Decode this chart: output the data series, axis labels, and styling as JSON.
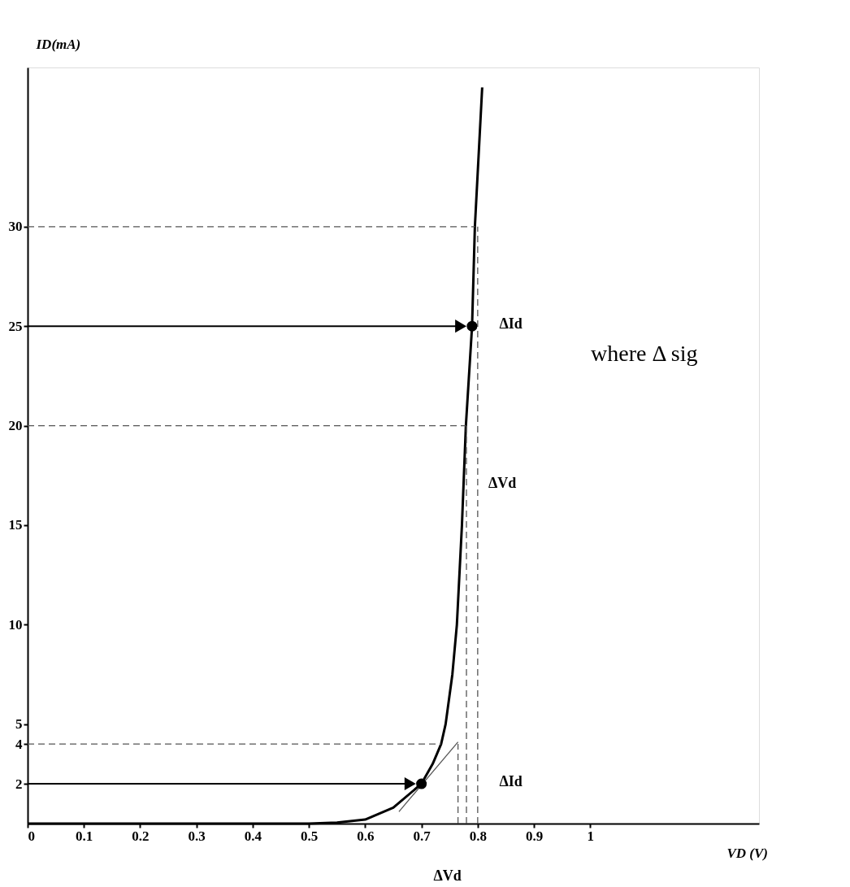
{
  "chart_data": {
    "type": "line",
    "xlabel": "VD (V)",
    "ylabel": "ID(mA)",
    "xlim": [
      0,
      1.3
    ],
    "ylim": [
      0,
      38
    ],
    "xticks": [
      0,
      0.1,
      0.2,
      0.3,
      0.4,
      0.5,
      0.6,
      0.7,
      0.8,
      0.9,
      1
    ],
    "yticks": [
      2,
      4,
      5,
      10,
      15,
      20,
      25,
      30
    ],
    "grid": false,
    "series": [
      {
        "color": "#000000",
        "line_style": "solid",
        "x": [
          0,
          0.5,
          0.55,
          0.6,
          0.65,
          0.7,
          0.72,
          0.735,
          0.743,
          0.755,
          0.763,
          0.772,
          0.779,
          0.79,
          0.795,
          0.808
        ],
        "values": [
          0,
          0,
          0.05,
          0.2,
          0.8,
          2,
          3,
          4,
          5,
          7.5,
          10,
          15,
          20,
          25,
          30,
          37
        ]
      },
      {
        "type": "line",
        "color": "#555555",
        "line_style": "dashed",
        "x": [
          0,
          0.795
        ],
        "values": [
          30,
          30
        ]
      },
      {
        "type": "line",
        "color": "#555555",
        "line_style": "dashed",
        "x": [
          0,
          0.779
        ],
        "values": [
          20,
          20
        ]
      },
      {
        "type": "line",
        "color": "#555555",
        "line_style": "dashed",
        "x": [
          0,
          0.735
        ],
        "values": [
          4,
          4
        ]
      },
      {
        "type": "line",
        "color": "#555555",
        "line_style": "dashed",
        "x": [
          0.765,
          0.765
        ],
        "values": [
          0,
          4
        ]
      },
      {
        "type": "line",
        "color": "#555555",
        "line_style": "dashed",
        "x": [
          0.78,
          0.78
        ],
        "values": [
          0,
          20
        ]
      },
      {
        "type": "line",
        "color": "#555555",
        "line_style": "dashed",
        "x": [
          0.8,
          0.8
        ],
        "values": [
          0,
          30
        ]
      },
      {
        "type": "line",
        "color": "#555555",
        "line_style": "solid",
        "x": [
          0.66,
          0.765
        ],
        "values": [
          0.6,
          4.1
        ]
      },
      {
        "type": "line",
        "color": "#000000",
        "line_style": "solid",
        "marker": "triangle",
        "x": [
          0,
          0.77
        ],
        "values": [
          25,
          25
        ]
      },
      {
        "type": "line",
        "color": "#000000",
        "line_style": "solid",
        "marker": "triangle",
        "x": [
          0,
          0.68
        ],
        "values": [
          2,
          2
        ]
      },
      {
        "type": "scatter",
        "color": "#000000",
        "marker": "circle",
        "x": [
          0.7,
          0.79
        ],
        "values": [
          2,
          25
        ]
      }
    ],
    "annotations": [
      "ΔId",
      "ΔVd",
      "ΔId",
      "ΔVd",
      "where Δ sig"
    ]
  }
}
